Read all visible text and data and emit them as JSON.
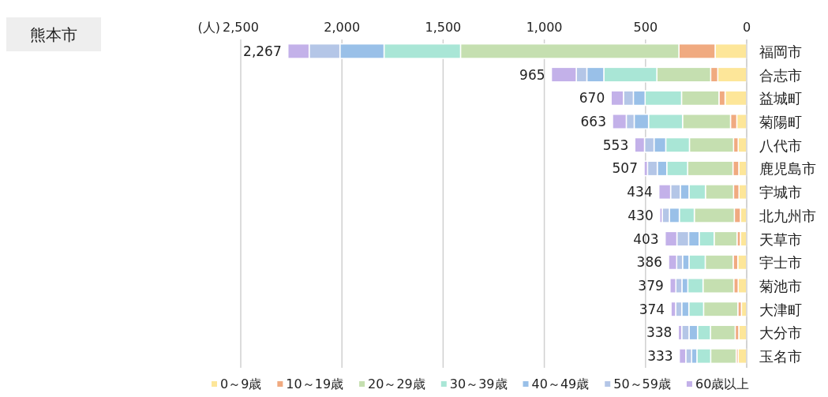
{
  "chart_data": {
    "type": "bar",
    "orientation": "horizontal",
    "stacked": true,
    "title": "熊本市",
    "xlabel": "(人)",
    "categories": [
      "福岡市",
      "合志市",
      "益城町",
      "菊陽町",
      "八代市",
      "鹿児島市",
      "宇城市",
      "北九州市",
      "天草市",
      "宇士市",
      "菊池市",
      "大津町",
      "大分市",
      "玉名市"
    ],
    "series": [
      {
        "name": "0～9歳",
        "color": "#fde699",
        "values": [
          156,
          143,
          107,
          49,
          42,
          39,
          38,
          31,
          31,
          44,
          42,
          26,
          39,
          42
        ]
      },
      {
        "name": "10～19歳",
        "color": "#f0aa80",
        "values": [
          179,
          35,
          30,
          31,
          23,
          29,
          27,
          30,
          17,
          23,
          22,
          18,
          18,
          10
        ]
      },
      {
        "name": "20～29歳",
        "color": "#c5dfb0",
        "values": [
          1079,
          266,
          185,
          237,
          218,
          224,
          139,
          198,
          113,
          138,
          152,
          169,
          122,
          126
        ]
      },
      {
        "name": "30～39歳",
        "color": "#a9e6d6",
        "values": [
          378,
          262,
          180,
          168,
          117,
          103,
          81,
          74,
          74,
          80,
          75,
          73,
          64,
          68
        ]
      },
      {
        "name": "40～49歳",
        "color": "#99c0e8",
        "values": [
          218,
          84,
          58,
          71,
          58,
          47,
          43,
          49,
          52,
          32,
          29,
          35,
          42,
          26
        ]
      },
      {
        "name": "50～59歳",
        "color": "#b4c6e7",
        "values": [
          152,
          52,
          49,
          39,
          47,
          48,
          48,
          35,
          58,
          29,
          30,
          30,
          36,
          29
        ]
      },
      {
        "name": "60歳以上",
        "color": "#c3b1e9",
        "values": [
          105,
          123,
          61,
          68,
          48,
          17,
          58,
          13,
          58,
          40,
          29,
          23,
          17,
          32
        ]
      }
    ],
    "totals": [
      "2,267",
      "965",
      "670",
      "663",
      "553",
      "507",
      "434",
      "430",
      "403",
      "386",
      "379",
      "374",
      "338",
      "333"
    ],
    "xlim": [
      2500,
      0
    ],
    "xticks": [
      {
        "value": 2500,
        "label": "2,500"
      },
      {
        "value": 2000,
        "label": "2,000"
      },
      {
        "value": 1500,
        "label": "1,500"
      },
      {
        "value": 1000,
        "label": "1,000"
      },
      500,
      0
    ],
    "grid": "x",
    "legend": "bottom"
  }
}
